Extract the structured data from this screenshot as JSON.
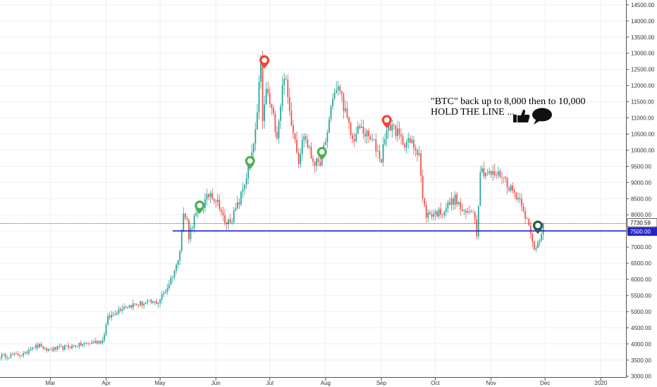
{
  "chart_data": {
    "type": "candlestick",
    "symbol": "BTC",
    "y_ticks": [
      "14500.00",
      "14000.00",
      "13500.00",
      "13000.00",
      "12500.00",
      "12000.00",
      "11500.00",
      "11000.00",
      "10500.00",
      "10000.00",
      "9500.00",
      "9000.00",
      "8500.00",
      "8000.00",
      "7500.00",
      "7000.00",
      "6500.00",
      "6000.00",
      "5500.00",
      "5000.00",
      "4500.00",
      "4000.00",
      "3500.00",
      "3000.00"
    ],
    "ylim": [
      2950,
      14650
    ],
    "x_ticks": [
      {
        "label": "Mar",
        "date": "2019-03-01"
      },
      {
        "label": "Apr",
        "date": "2019-04-01"
      },
      {
        "label": "May",
        "date": "2019-05-01"
      },
      {
        "label": "Jun",
        "date": "2019-06-01"
      },
      {
        "label": "Jul",
        "date": "2019-07-01"
      },
      {
        "label": "Aug",
        "date": "2019-08-01"
      },
      {
        "label": "Sep",
        "date": "2019-09-01"
      },
      {
        "label": "Oct",
        "date": "2019-10-01"
      },
      {
        "label": "Nov",
        "date": "2019-11-01"
      },
      {
        "label": "Dec",
        "date": "2019-12-01"
      },
      {
        "label": "2020",
        "date": "2020-01-01"
      }
    ],
    "xlim": [
      "2019-02-01",
      "2020-01-15"
    ],
    "up_color": "#26a69a",
    "down_color": "#ef5350",
    "anchors": [
      [
        "2019-02-01",
        3620
      ],
      [
        "2019-02-08",
        3650
      ],
      [
        "2019-02-15",
        3680
      ],
      [
        "2019-02-18",
        3900
      ],
      [
        "2019-02-24",
        3950
      ],
      [
        "2019-02-25",
        3800
      ],
      [
        "2019-03-10",
        3900
      ],
      [
        "2019-03-20",
        4000
      ],
      [
        "2019-03-30",
        4100
      ],
      [
        "2019-04-02",
        4800
      ],
      [
        "2019-04-10",
        5150
      ],
      [
        "2019-04-20",
        5250
      ],
      [
        "2019-04-30",
        5300
      ],
      [
        "2019-05-05",
        5750
      ],
      [
        "2019-05-10",
        6400
      ],
      [
        "2019-05-12",
        7000
      ],
      [
        "2019-05-14",
        8000
      ],
      [
        "2019-05-16",
        7800
      ],
      [
        "2019-05-17",
        7350
      ],
      [
        "2019-05-20",
        7900
      ],
      [
        "2019-05-26",
        8400
      ],
      [
        "2019-05-29",
        8700
      ],
      [
        "2019-06-03",
        8300
      ],
      [
        "2019-06-06",
        7700
      ],
      [
        "2019-06-10",
        7900
      ],
      [
        "2019-06-14",
        8400
      ],
      [
        "2019-06-18",
        9200
      ],
      [
        "2019-06-21",
        9800
      ],
      [
        "2019-06-24",
        11000
      ],
      [
        "2019-06-26",
        12900
      ],
      [
        "2019-06-27",
        10800
      ],
      [
        "2019-06-29",
        11900
      ],
      [
        "2019-07-03",
        11000
      ],
      [
        "2019-07-05",
        10500
      ],
      [
        "2019-07-09",
        12400
      ],
      [
        "2019-07-12",
        11200
      ],
      [
        "2019-07-15",
        10400
      ],
      [
        "2019-07-17",
        9700
      ],
      [
        "2019-07-20",
        10500
      ],
      [
        "2019-07-24",
        9800
      ],
      [
        "2019-07-28",
        9500
      ],
      [
        "2019-08-01",
        10200
      ],
      [
        "2019-08-05",
        11700
      ],
      [
        "2019-08-09",
        11900
      ],
      [
        "2019-08-13",
        10900
      ],
      [
        "2019-08-16",
        10300
      ],
      [
        "2019-08-20",
        10700
      ],
      [
        "2019-08-28",
        10200
      ],
      [
        "2019-09-01",
        9700
      ],
      [
        "2019-09-03",
        10500
      ],
      [
        "2019-09-07",
        10800
      ],
      [
        "2019-09-12",
        10300
      ],
      [
        "2019-09-18",
        10200
      ],
      [
        "2019-09-22",
        9950
      ],
      [
        "2019-09-24",
        8450
      ],
      [
        "2019-09-26",
        8000
      ],
      [
        "2019-10-05",
        8100
      ],
      [
        "2019-10-09",
        8350
      ],
      [
        "2019-10-12",
        8500
      ],
      [
        "2019-10-17",
        8000
      ],
      [
        "2019-10-22",
        8200
      ],
      [
        "2019-10-24",
        7450
      ],
      [
        "2019-10-26",
        9400
      ],
      [
        "2019-11-01",
        9250
      ],
      [
        "2019-11-07",
        9250
      ],
      [
        "2019-11-12",
        8800
      ],
      [
        "2019-11-18",
        8400
      ],
      [
        "2019-11-22",
        7600
      ],
      [
        "2019-11-25",
        6900
      ],
      [
        "2019-11-28",
        7300
      ],
      [
        "2019-11-30",
        7730
      ]
    ]
  },
  "axis": {
    "current_price_label": "7730.59",
    "level_label": "7500.00",
    "current_price": 7730.59,
    "level_price": 7500.0,
    "level_color": "#2323c8",
    "level_start_date": "2019-05-08"
  },
  "annotation": {
    "line1": "\"BTC\" back up to 8,000 then to 10,000",
    "line2": "HOLD THE LINE ..."
  },
  "markers": [
    {
      "date": "2019-05-23",
      "price": 8200,
      "color": "#4caf50"
    },
    {
      "date": "2019-06-20",
      "price": 9580,
      "color": "#4caf50"
    },
    {
      "date": "2019-06-28",
      "price": 12700,
      "color": "#f44336"
    },
    {
      "date": "2019-07-30",
      "price": 9860,
      "color": "#4caf50"
    },
    {
      "date": "2019-09-04",
      "price": 10850,
      "color": "#f44336"
    },
    {
      "date": "2019-11-27",
      "price": 7580,
      "color": "#2e5c45"
    }
  ]
}
